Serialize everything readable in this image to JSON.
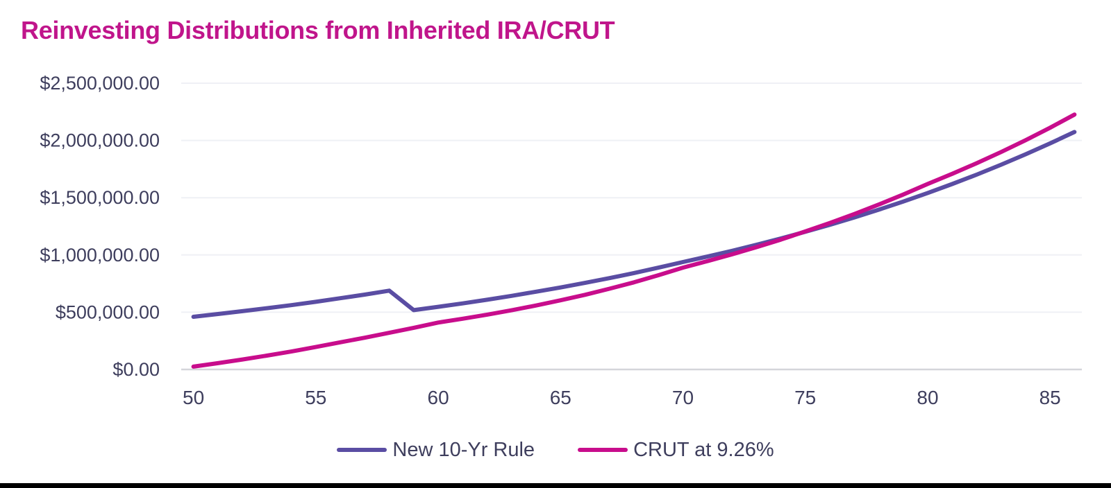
{
  "title": "Reinvesting Distributions from Inherited IRA/CRUT",
  "colors": {
    "title": "#c0158b",
    "series1": "#5a4da3",
    "series2": "#c80d8c",
    "axis_text": "#3e3e5d",
    "gridline": "#eff0f5",
    "axis_line": "#d4d5da",
    "footer_bar": "#000000"
  },
  "chart_data": {
    "type": "line",
    "title": "Reinvesting Distributions from Inherited IRA/CRUT",
    "xlabel": "",
    "ylabel": "",
    "grid": true,
    "legend_position": "bottom",
    "xlim": [
      49.5,
      86.3
    ],
    "ylim": [
      0,
      2500000
    ],
    "x_ticks": [
      50,
      55,
      60,
      65,
      70,
      75,
      80,
      85
    ],
    "y_ticks": [
      0,
      500000,
      1000000,
      1500000,
      2000000,
      2500000
    ],
    "y_tick_labels": [
      "$0.00",
      "$500,000.00",
      "$1,000,000.00",
      "$1,500,000.00",
      "$2,000,000.00",
      "$2,500,000.00"
    ],
    "x": [
      50,
      51,
      52,
      53,
      54,
      55,
      56,
      57,
      58,
      59,
      60,
      61,
      62,
      63,
      64,
      65,
      66,
      67,
      68,
      69,
      70,
      71,
      72,
      73,
      74,
      75,
      76,
      77,
      78,
      79,
      80,
      81,
      82,
      83,
      84,
      85,
      86
    ],
    "series": [
      {
        "name": "New 10-Yr Rule",
        "color": "#5a4da3",
        "values": [
          460000,
          484000,
          509000,
          535000,
          562000,
          591000,
          622000,
          654000,
          688000,
          518000,
          547000,
          577000,
          609000,
          643000,
          679000,
          716000,
          756000,
          798000,
          842000,
          889000,
          938000,
          986000,
          1036000,
          1089000,
          1144000,
          1202000,
          1263000,
          1327000,
          1395000,
          1466000,
          1541000,
          1619000,
          1701000,
          1788000,
          1879000,
          1974000,
          2074000
        ]
      },
      {
        "name": "CRUT at 9.26%",
        "color": "#c80d8c",
        "values": [
          25000,
          55000,
          87000,
          121000,
          157000,
          196000,
          237000,
          277000,
          320000,
          364000,
          410000,
          443000,
          479000,
          517000,
          559000,
          604000,
          652000,
          705000,
          761000,
          823000,
          889000,
          946000,
          1005000,
          1068000,
          1134000,
          1205000,
          1279000,
          1357000,
          1440000,
          1527000,
          1620000,
          1708000,
          1801000,
          1899000,
          2002000,
          2111000,
          2226000
        ]
      }
    ]
  }
}
